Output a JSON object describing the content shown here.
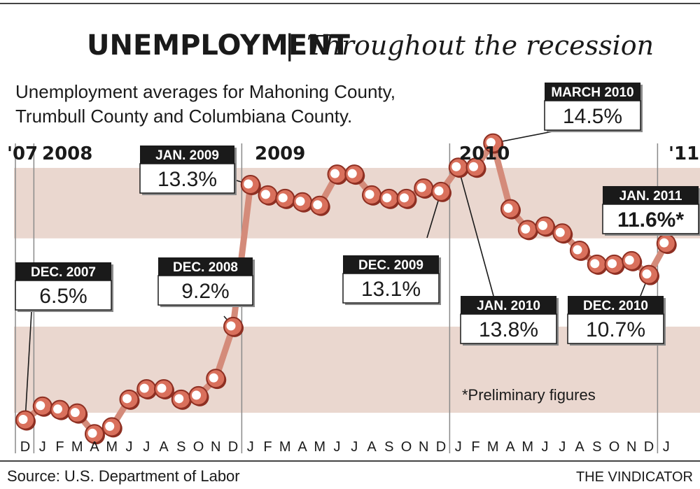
{
  "title": {
    "main": "UNEMPLOYMENT",
    "separator": "|",
    "italic": "Throughout the recession"
  },
  "subtitle": {
    "line1": "Unemployment averages for Mahoning County,",
    "line2": "Trumbull County and Columbiana County."
  },
  "year_labels": [
    "'07",
    "2008",
    "2009",
    "2010",
    "'11"
  ],
  "footnote": "*Preliminary figures",
  "source": "Source: U.S. Department of Labor",
  "credit": "THE VINDICATOR",
  "colors": {
    "band": "#ead7cf",
    "marker_fill": "#d9705c",
    "marker_edge": "#8e2f22",
    "connector": "#d48b7a",
    "label_dark": "#1a1a1a"
  },
  "chart_data": {
    "type": "line",
    "title": "UNEMPLOYMENT | Throughout the recession",
    "subtitle": "Unemployment averages for Mahoning County, Trumbull County and Columbiana County.",
    "x_tick_labels": [
      "D",
      "J",
      "F",
      "M",
      "A",
      "M",
      "J",
      "J",
      "A",
      "S",
      "O",
      "N",
      "D",
      "J",
      "F",
      "M",
      "A",
      "M",
      "J",
      "J",
      "A",
      "S",
      "O",
      "N",
      "D",
      "J",
      "F",
      "M",
      "A",
      "M",
      "J",
      "J",
      "A",
      "S",
      "O",
      "N",
      "D",
      "J"
    ],
    "x": [
      "Dec 2007",
      "Jan 2008",
      "Feb 2008",
      "Mar 2008",
      "Apr 2008",
      "May 2008",
      "Jun 2008",
      "Jul 2008",
      "Aug 2008",
      "Sep 2008",
      "Oct 2008",
      "Nov 2008",
      "Dec 2008",
      "Jan 2009",
      "Feb 2009",
      "Mar 2009",
      "Apr 2009",
      "May 2009",
      "Jun 2009",
      "Jul 2009",
      "Aug 2009",
      "Sep 2009",
      "Oct 2009",
      "Nov 2009",
      "Dec 2009",
      "Jan 2010",
      "Feb 2010",
      "Mar 2010",
      "Apr 2010",
      "May 2010",
      "Jun 2010",
      "Jul 2010",
      "Aug 2010",
      "Sep 2010",
      "Oct 2010",
      "Nov 2010",
      "Dec 2010",
      "Jan 2011"
    ],
    "values": [
      6.5,
      6.9,
      6.8,
      6.7,
      6.1,
      6.3,
      7.1,
      7.4,
      7.4,
      7.1,
      7.2,
      7.7,
      9.2,
      13.3,
      13.0,
      12.9,
      12.8,
      12.7,
      13.6,
      13.6,
      13.0,
      12.9,
      12.9,
      13.2,
      13.1,
      13.8,
      13.8,
      14.5,
      12.6,
      12.0,
      12.1,
      11.9,
      11.4,
      11.0,
      11.0,
      11.1,
      10.7,
      11.6
    ],
    "ylim": [
      5.5,
      15.2
    ],
    "bands": [
      [
        5.5,
        9.2
      ],
      [
        11.75,
        14.9
      ]
    ],
    "callouts": [
      {
        "label": "DEC. 2007",
        "value_text": "6.5%",
        "index": 0
      },
      {
        "label": "DEC. 2008",
        "value_text": "9.2%",
        "index": 12
      },
      {
        "label": "JAN. 2009",
        "value_text": "13.3%",
        "index": 13
      },
      {
        "label": "DEC. 2009",
        "value_text": "13.1%",
        "index": 24
      },
      {
        "label": "JAN. 2010",
        "value_text": "13.8%",
        "index": 25
      },
      {
        "label": "MARCH 2010",
        "value_text": "14.5%",
        "index": 27
      },
      {
        "label": "DEC. 2010",
        "value_text": "10.7%",
        "index": 36
      },
      {
        "label": "JAN. 2011",
        "value_text": "11.6%*",
        "index": 37
      }
    ],
    "grid": false,
    "legend": "none"
  }
}
